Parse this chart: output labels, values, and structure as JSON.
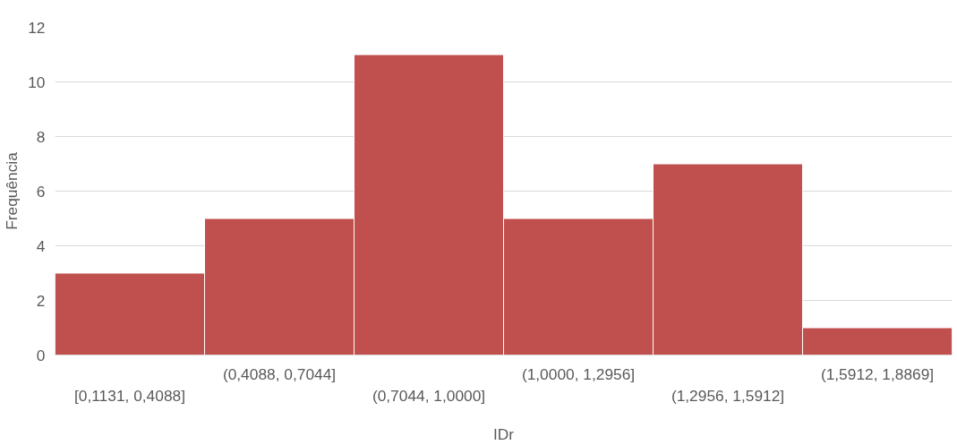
{
  "chart_data": {
    "type": "bar",
    "xlabel": "IDr",
    "ylabel": "Frequência",
    "categories": [
      "[0,1131, 0,4088]",
      "(0,4088, 0,7044]",
      "(0,7044, 1,0000]",
      "(1,0000, 1,2956]",
      "(1,2956, 1,5912]",
      "(1,5912, 1,8869]"
    ],
    "values": [
      3,
      5,
      11,
      5,
      7,
      1
    ],
    "color": "#c0504d",
    "ylim": [
      0,
      12
    ],
    "yticks": [
      0,
      2,
      4,
      6,
      8,
      10,
      12
    ],
    "grid": "y"
  }
}
